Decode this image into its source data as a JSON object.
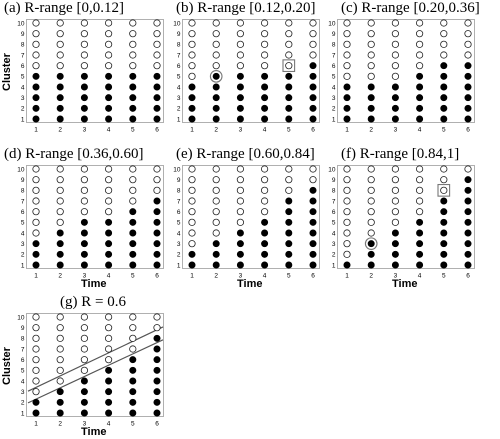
{
  "axes": {
    "x_label": "Time",
    "y_label": "Cluster"
  },
  "chart_data": [
    {
      "type": "scatter",
      "title": "(a) R-range [0,0.12]",
      "x_ticks": [
        1,
        2,
        3,
        4,
        5,
        6
      ],
      "y_ticks": [
        1,
        2,
        3,
        4,
        5,
        6,
        7,
        8,
        9,
        10
      ],
      "filled_up_to": [
        5,
        5,
        5,
        5,
        5,
        5
      ],
      "highlights": [],
      "show_y_label": true,
      "show_x_label": false
    },
    {
      "type": "scatter",
      "title": "(b) R-range [0.12,0.20]",
      "x_ticks": [
        1,
        2,
        3,
        4,
        5,
        6
      ],
      "y_ticks": [
        1,
        2,
        3,
        4,
        5,
        6,
        7,
        8,
        9,
        10
      ],
      "filled_up_to": [
        4,
        5,
        5,
        5,
        5,
        6
      ],
      "highlights": [
        {
          "x": 2,
          "y": 5,
          "shape": "circle"
        },
        {
          "x": 5,
          "y": 6,
          "shape": "square"
        }
      ],
      "show_y_label": false,
      "show_x_label": false
    },
    {
      "type": "scatter",
      "title": "(c) R-range [0.20,0.36]",
      "x_ticks": [
        1,
        2,
        3,
        4,
        5,
        6
      ],
      "y_ticks": [
        1,
        2,
        3,
        4,
        5,
        6,
        7,
        8,
        9,
        10
      ],
      "filled_up_to": [
        4,
        4,
        4,
        5,
        6,
        6
      ],
      "highlights": [],
      "show_y_label": false,
      "show_x_label": false
    },
    {
      "type": "scatter",
      "title": "(d) R-range [0.36,0.60]",
      "x_ticks": [
        1,
        2,
        3,
        4,
        5,
        6
      ],
      "y_ticks": [
        1,
        2,
        3,
        4,
        5,
        6,
        7,
        8,
        9,
        10
      ],
      "filled_up_to": [
        3,
        4,
        5,
        5,
        6,
        7
      ],
      "highlights": [],
      "show_y_label": false,
      "show_x_label": true
    },
    {
      "type": "scatter",
      "title": "(e) R-range [0.60,0.84]",
      "x_ticks": [
        1,
        2,
        3,
        4,
        5,
        6
      ],
      "y_ticks": [
        1,
        2,
        3,
        4,
        5,
        6,
        7,
        8,
        9,
        10
      ],
      "filled_up_to": [
        2,
        3,
        4,
        5,
        7,
        8
      ],
      "highlights": [],
      "show_y_label": false,
      "show_x_label": true
    },
    {
      "type": "scatter",
      "title": "(f) R-range [0.84,1]",
      "x_ticks": [
        1,
        2,
        3,
        4,
        5,
        6
      ],
      "y_ticks": [
        1,
        2,
        3,
        4,
        5,
        6,
        7,
        8,
        9,
        10
      ],
      "filled_up_to": [
        1,
        3,
        4,
        5,
        7,
        9
      ],
      "highlights": [
        {
          "x": 2,
          "y": 3,
          "shape": "circle"
        },
        {
          "x": 5,
          "y": 8,
          "shape": "square"
        }
      ],
      "show_y_label": false,
      "show_x_label": true
    },
    {
      "type": "scatter",
      "title": "(g) R = 0.6",
      "x_ticks": [
        1,
        2,
        3,
        4,
        5,
        6
      ],
      "y_ticks": [
        1,
        2,
        3,
        4,
        5,
        6,
        7,
        8,
        9,
        10
      ],
      "filled_up_to": [
        2,
        3,
        4,
        5,
        6,
        8
      ],
      "highlights": [],
      "band_lines": [
        {
          "from": [
            1,
            3.4
          ],
          "to": [
            6,
            8.8
          ]
        },
        {
          "from": [
            1,
            2.3
          ],
          "to": [
            6,
            7.6
          ]
        }
      ],
      "show_y_label": true,
      "show_x_label": true
    }
  ]
}
